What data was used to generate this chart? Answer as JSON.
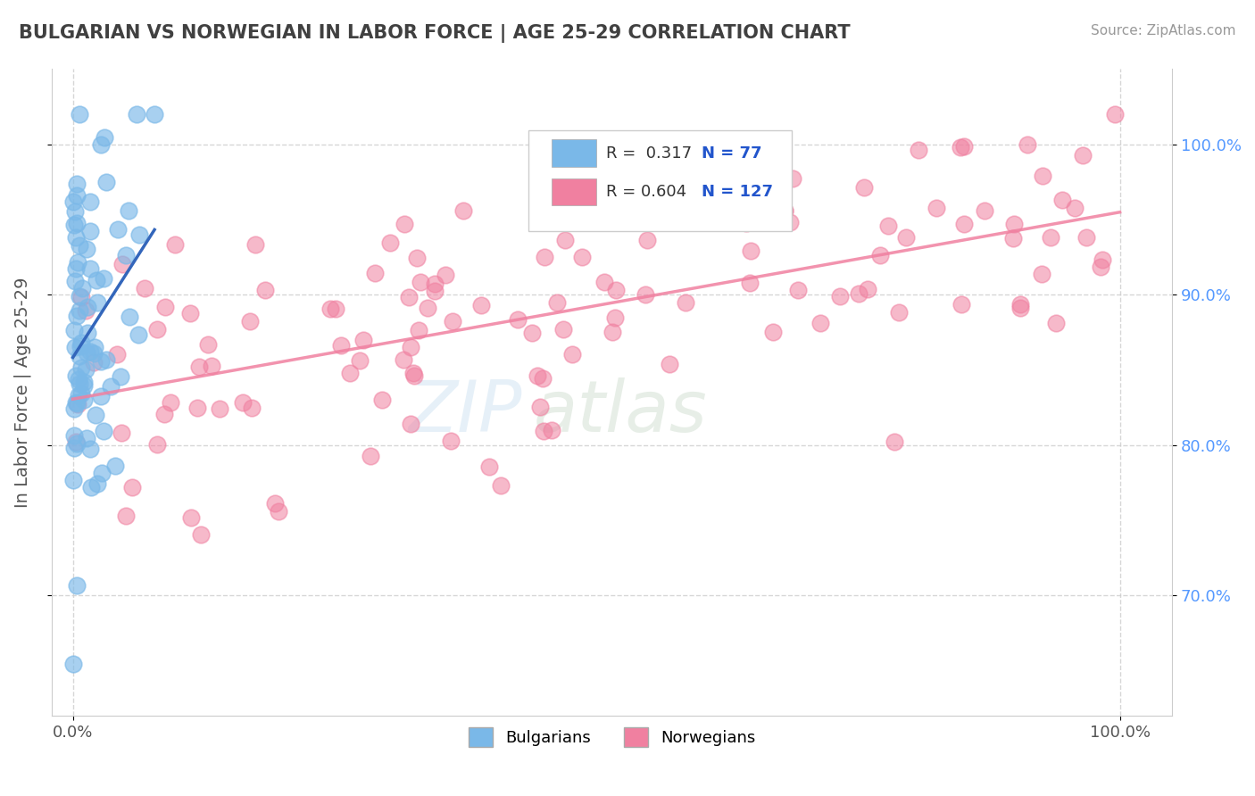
{
  "title": "BULGARIAN VS NORWEGIAN IN LABOR FORCE | AGE 25-29 CORRELATION CHART",
  "source": "Source: ZipAtlas.com",
  "ylabel": "In Labor Force | Age 25-29",
  "legend_entries": [
    {
      "label": "Bulgarians",
      "R": "0.317",
      "N": "77"
    },
    {
      "label": "Norwegians",
      "R": "0.604",
      "N": "127"
    }
  ],
  "watermark_zip": "ZIP",
  "watermark_atlas": "atlas",
  "bg_color": "#ffffff",
  "grid_color": "#cccccc",
  "title_color": "#404040",
  "bulgarian_color": "#7ab8e8",
  "norwegian_color": "#f080a0",
  "bulgarian_line_color": "#3366bb",
  "norwegian_line_color": "#f080a0",
  "R_bulgarian": 0.317,
  "N_bulgarian": 77,
  "R_norwegian": 0.604,
  "N_norwegian": 127,
  "seed": 42,
  "xlim": [
    -0.02,
    1.05
  ],
  "ylim": [
    0.62,
    1.05
  ]
}
